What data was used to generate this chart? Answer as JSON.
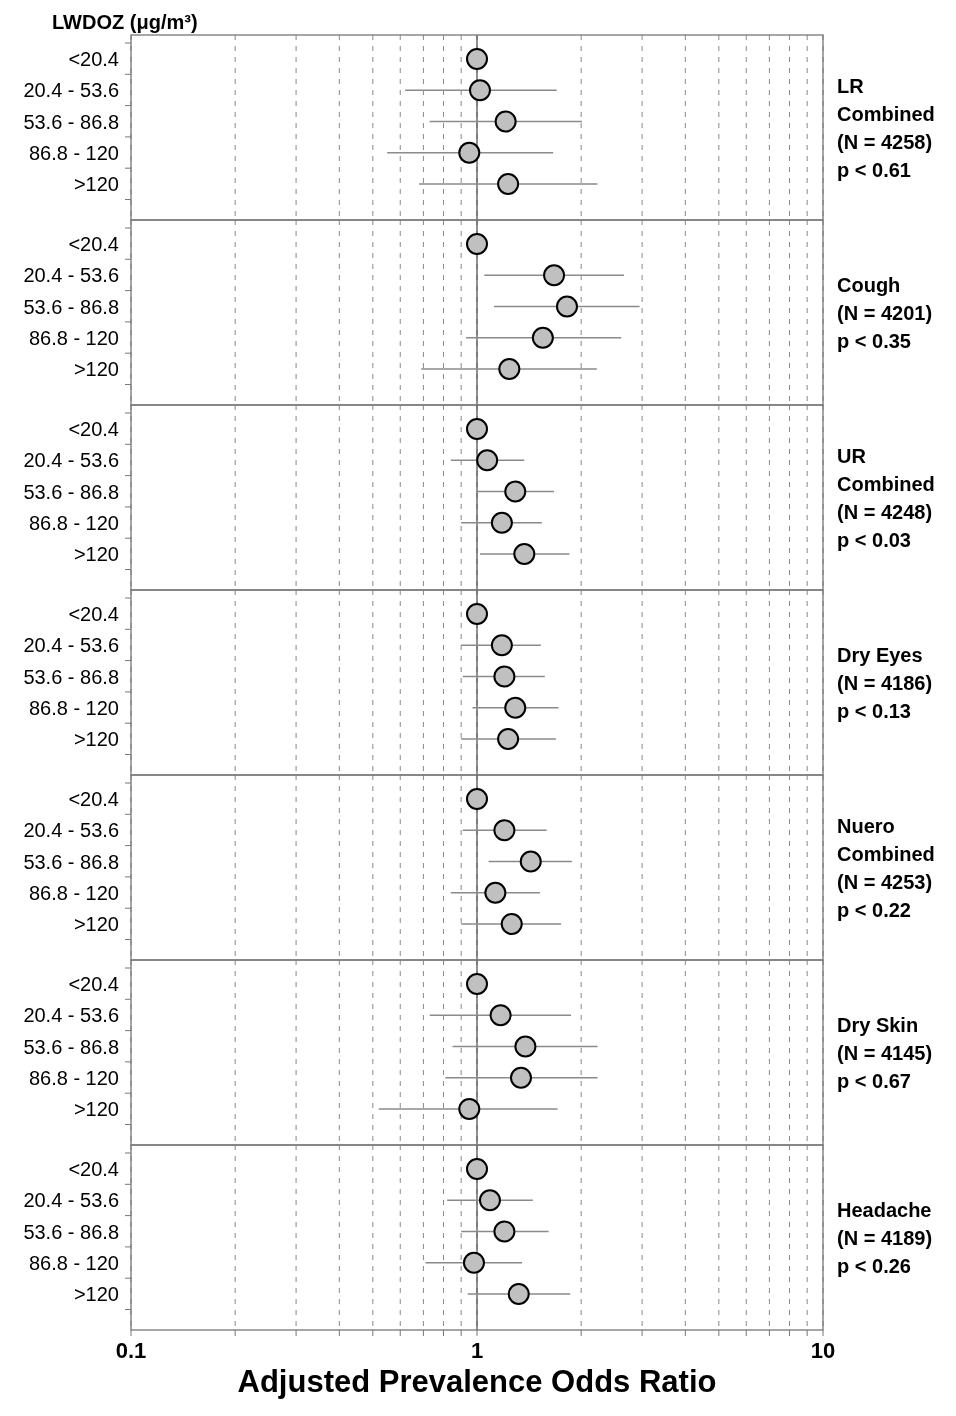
{
  "chart_data": [
    {
      "type": "scatter",
      "orientation": "horizontal",
      "annotations": [
        "LR Combined (N = 4258) p < 0.61"
      ],
      "ylabel": "LWDOZ (μg/m³)",
      "categories": [
        "<20.4",
        "20.4 - 53.6",
        "53.6 - 86.8",
        "86.8 - 120",
        ">120"
      ],
      "values": [
        1,
        1.02,
        1.21,
        0.95,
        1.23
      ],
      "errors": [
        null,
        [
          0.62,
          1.7
        ],
        [
          0.73,
          2.01
        ],
        [
          0.55,
          1.66
        ],
        [
          0.68,
          2.23
        ]
      ],
      "color": "#c0c0c0",
      "marker": "circle",
      "log": "x",
      "xlim": [
        0.1,
        10
      ],
      "xticks": [
        0.1,
        {
          "value": 0.2,
          "label": null
        },
        {
          "value": 0.3,
          "label": null
        },
        {
          "value": 0.4,
          "label": null
        },
        {
          "value": 0.5,
          "label": null
        },
        {
          "value": 0.6,
          "label": null
        },
        {
          "value": 0.7,
          "label": null
        },
        {
          "value": 0.8,
          "label": null
        },
        {
          "value": 0.9,
          "label": null
        },
        1,
        {
          "value": 2,
          "label": null
        },
        {
          "value": 3,
          "label": null
        },
        {
          "value": 4,
          "label": null
        },
        {
          "value": 5,
          "label": null
        },
        {
          "value": 6,
          "label": null
        },
        {
          "value": 7,
          "label": null
        },
        {
          "value": 8,
          "label": null
        },
        {
          "value": 9,
          "label": null
        },
        10
      ],
      "grid": "x",
      "ref_lines": [
        {
          "axis": "x",
          "value": 1
        }
      ],
      "tick_labels": "y"
    },
    {
      "type": "scatter",
      "orientation": "horizontal",
      "annotations": [
        "Cough (N = 4201) p < 0.35"
      ],
      "categories": [
        "<20.4",
        "20.4 - 53.6",
        "53.6 - 86.8",
        "86.8 - 120",
        ">120"
      ],
      "values": [
        1,
        1.67,
        1.82,
        1.55,
        1.24
      ],
      "errors": [
        null,
        [
          1.05,
          2.66
        ],
        [
          1.12,
          2.95
        ],
        [
          0.93,
          2.61
        ],
        [
          0.69,
          2.22
        ]
      ],
      "color": "#c0c0c0",
      "marker": "circle",
      "log": "x",
      "xlim": [
        0.1,
        10
      ],
      "xticks": [
        0.1,
        {
          "value": 0.2,
          "label": null
        },
        {
          "value": 0.3,
          "label": null
        },
        {
          "value": 0.4,
          "label": null
        },
        {
          "value": 0.5,
          "label": null
        },
        {
          "value": 0.6,
          "label": null
        },
        {
          "value": 0.7,
          "label": null
        },
        {
          "value": 0.8,
          "label": null
        },
        {
          "value": 0.9,
          "label": null
        },
        1,
        {
          "value": 2,
          "label": null
        },
        {
          "value": 3,
          "label": null
        },
        {
          "value": 4,
          "label": null
        },
        {
          "value": 5,
          "label": null
        },
        {
          "value": 6,
          "label": null
        },
        {
          "value": 7,
          "label": null
        },
        {
          "value": 8,
          "label": null
        },
        {
          "value": 9,
          "label": null
        },
        10
      ],
      "grid": "x",
      "ref_lines": [
        {
          "axis": "x",
          "value": 1
        }
      ],
      "tick_labels": "y"
    },
    {
      "type": "scatter",
      "orientation": "horizontal",
      "annotations": [
        "UR Combined (N = 4248) p < 0.03"
      ],
      "categories": [
        "<20.4",
        "20.4 - 53.6",
        "53.6 - 86.8",
        "86.8 - 120",
        ">120"
      ],
      "values": [
        1,
        1.07,
        1.29,
        1.18,
        1.37
      ],
      "errors": [
        null,
        [
          0.84,
          1.37
        ],
        [
          1.0,
          1.67
        ],
        [
          0.9,
          1.54
        ],
        [
          1.02,
          1.85
        ]
      ],
      "color": "#c0c0c0",
      "marker": "circle",
      "log": "x",
      "xlim": [
        0.1,
        10
      ],
      "xticks": [
        0.1,
        {
          "value": 0.2,
          "label": null
        },
        {
          "value": 0.3,
          "label": null
        },
        {
          "value": 0.4,
          "label": null
        },
        {
          "value": 0.5,
          "label": null
        },
        {
          "value": 0.6,
          "label": null
        },
        {
          "value": 0.7,
          "label": null
        },
        {
          "value": 0.8,
          "label": null
        },
        {
          "value": 0.9,
          "label": null
        },
        1,
        {
          "value": 2,
          "label": null
        },
        {
          "value": 3,
          "label": null
        },
        {
          "value": 4,
          "label": null
        },
        {
          "value": 5,
          "label": null
        },
        {
          "value": 6,
          "label": null
        },
        {
          "value": 7,
          "label": null
        },
        {
          "value": 8,
          "label": null
        },
        {
          "value": 9,
          "label": null
        },
        10
      ],
      "grid": "x",
      "ref_lines": [
        {
          "axis": "x",
          "value": 1
        }
      ],
      "tick_labels": "y"
    },
    {
      "type": "scatter",
      "orientation": "horizontal",
      "annotations": [
        "Dry Eyes (N = 4186) p < 0.13"
      ],
      "categories": [
        "<20.4",
        "20.4 - 53.6",
        "53.6 - 86.8",
        "86.8 - 120",
        ">120"
      ],
      "values": [
        1,
        1.18,
        1.2,
        1.29,
        1.23
      ],
      "errors": [
        null,
        [
          0.9,
          1.53
        ],
        [
          0.91,
          1.57
        ],
        [
          0.97,
          1.72
        ],
        [
          0.9,
          1.69
        ]
      ],
      "color": "#c0c0c0",
      "marker": "circle",
      "log": "x",
      "xlim": [
        0.1,
        10
      ],
      "xticks": [
        0.1,
        {
          "value": 0.2,
          "label": null
        },
        {
          "value": 0.3,
          "label": null
        },
        {
          "value": 0.4,
          "label": null
        },
        {
          "value": 0.5,
          "label": null
        },
        {
          "value": 0.6,
          "label": null
        },
        {
          "value": 0.7,
          "label": null
        },
        {
          "value": 0.8,
          "label": null
        },
        {
          "value": 0.9,
          "label": null
        },
        1,
        {
          "value": 2,
          "label": null
        },
        {
          "value": 3,
          "label": null
        },
        {
          "value": 4,
          "label": null
        },
        {
          "value": 5,
          "label": null
        },
        {
          "value": 6,
          "label": null
        },
        {
          "value": 7,
          "label": null
        },
        {
          "value": 8,
          "label": null
        },
        {
          "value": 9,
          "label": null
        },
        10
      ],
      "grid": "x",
      "ref_lines": [
        {
          "axis": "x",
          "value": 1
        }
      ],
      "tick_labels": "y"
    },
    {
      "type": "scatter",
      "orientation": "horizontal",
      "annotations": [
        "Nuero Combined (N = 4253) p < 0.22"
      ],
      "categories": [
        "<20.4",
        "20.4 - 53.6",
        "53.6 - 86.8",
        "86.8 - 120",
        ">120"
      ],
      "values": [
        1,
        1.2,
        1.43,
        1.13,
        1.26
      ],
      "errors": [
        null,
        [
          0.91,
          1.59
        ],
        [
          1.08,
          1.88
        ],
        [
          0.84,
          1.52
        ],
        [
          0.9,
          1.75
        ]
      ],
      "color": "#c0c0c0",
      "marker": "circle",
      "log": "x",
      "xlim": [
        0.1,
        10
      ],
      "xticks": [
        0.1,
        {
          "value": 0.2,
          "label": null
        },
        {
          "value": 0.3,
          "label": null
        },
        {
          "value": 0.4,
          "label": null
        },
        {
          "value": 0.5,
          "label": null
        },
        {
          "value": 0.6,
          "label": null
        },
        {
          "value": 0.7,
          "label": null
        },
        {
          "value": 0.8,
          "label": null
        },
        {
          "value": 0.9,
          "label": null
        },
        1,
        {
          "value": 2,
          "label": null
        },
        {
          "value": 3,
          "label": null
        },
        {
          "value": 4,
          "label": null
        },
        {
          "value": 5,
          "label": null
        },
        {
          "value": 6,
          "label": null
        },
        {
          "value": 7,
          "label": null
        },
        {
          "value": 8,
          "label": null
        },
        {
          "value": 9,
          "label": null
        },
        10
      ],
      "grid": "x",
      "ref_lines": [
        {
          "axis": "x",
          "value": 1
        }
      ],
      "tick_labels": "y"
    },
    {
      "type": "scatter",
      "orientation": "horizontal",
      "annotations": [
        "Dry Skin (N = 4145) p < 0.67"
      ],
      "categories": [
        "<20.4",
        "20.4 - 53.6",
        "53.6 - 86.8",
        "86.8 - 120",
        ">120"
      ],
      "values": [
        1,
        1.17,
        1.38,
        1.34,
        0.95
      ],
      "errors": [
        null,
        [
          0.73,
          1.87
        ],
        [
          0.85,
          2.23
        ],
        [
          0.81,
          2.23
        ],
        [
          0.52,
          1.71
        ]
      ],
      "color": "#c0c0c0",
      "marker": "circle",
      "log": "x",
      "xlim": [
        0.1,
        10
      ],
      "xticks": [
        0.1,
        {
          "value": 0.2,
          "label": null
        },
        {
          "value": 0.3,
          "label": null
        },
        {
          "value": 0.4,
          "label": null
        },
        {
          "value": 0.5,
          "label": null
        },
        {
          "value": 0.6,
          "label": null
        },
        {
          "value": 0.7,
          "label": null
        },
        {
          "value": 0.8,
          "label": null
        },
        {
          "value": 0.9,
          "label": null
        },
        1,
        {
          "value": 2,
          "label": null
        },
        {
          "value": 3,
          "label": null
        },
        {
          "value": 4,
          "label": null
        },
        {
          "value": 5,
          "label": null
        },
        {
          "value": 6,
          "label": null
        },
        {
          "value": 7,
          "label": null
        },
        {
          "value": 8,
          "label": null
        },
        {
          "value": 9,
          "label": null
        },
        10
      ],
      "grid": "x",
      "ref_lines": [
        {
          "axis": "x",
          "value": 1
        }
      ],
      "tick_labels": "y"
    },
    {
      "type": "scatter",
      "orientation": "horizontal",
      "annotations": [
        "Headache (N = 4189) p < 0.26"
      ],
      "xlabel": "Adjusted Prevalence Odds Ratio",
      "categories": [
        "<20.4",
        "20.4 - 53.6",
        "53.6 - 86.8",
        "86.8 - 120",
        ">120"
      ],
      "values": [
        1,
        1.09,
        1.2,
        0.98,
        1.32
      ],
      "errors": [
        null,
        [
          0.82,
          1.45
        ],
        [
          0.9,
          1.61
        ],
        [
          0.71,
          1.35
        ],
        [
          0.94,
          1.86
        ]
      ],
      "color": "#c0c0c0",
      "marker": "circle",
      "log": "x",
      "xlim": [
        0.1,
        10
      ],
      "xticks": [
        0.1,
        {
          "value": 0.2,
          "label": null
        },
        {
          "value": 0.3,
          "label": null
        },
        {
          "value": 0.4,
          "label": null
        },
        {
          "value": 0.5,
          "label": null
        },
        {
          "value": 0.6,
          "label": null
        },
        {
          "value": 0.7,
          "label": null
        },
        {
          "value": 0.8,
          "label": null
        },
        {
          "value": 0.9,
          "label": null
        },
        1,
        {
          "value": 2,
          "label": null
        },
        {
          "value": 3,
          "label": null
        },
        {
          "value": 4,
          "label": null
        },
        {
          "value": 5,
          "label": null
        },
        {
          "value": 6,
          "label": null
        },
        {
          "value": 7,
          "label": null
        },
        {
          "value": 8,
          "label": null
        },
        {
          "value": 9,
          "label": null
        },
        10
      ],
      "grid": "x",
      "ref_lines": [
        {
          "axis": "x",
          "value": 1
        }
      ]
    }
  ]
}
